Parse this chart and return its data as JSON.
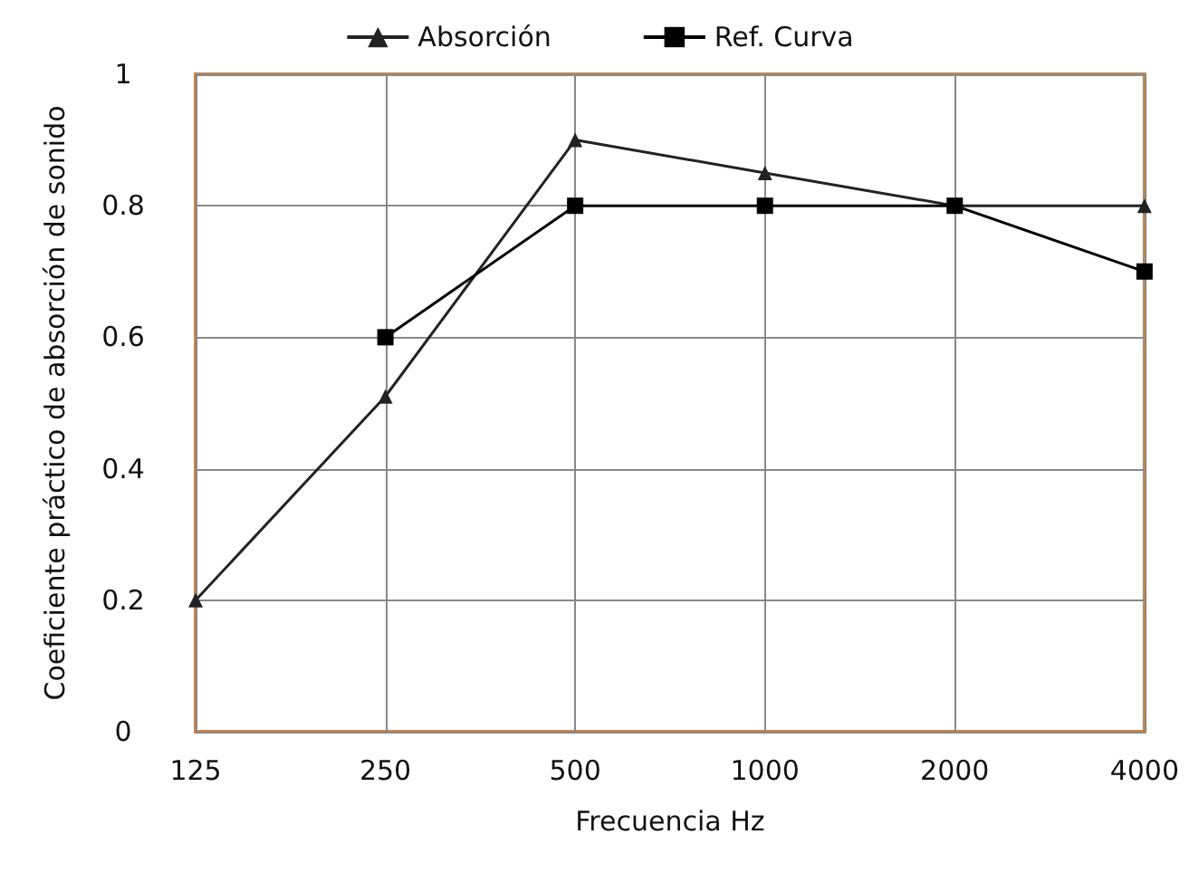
{
  "chart_data": {
    "type": "line",
    "xlabel": "Frecuencia Hz",
    "ylabel": "Coeficiente práctico de absorción de sonido",
    "categories": [
      "125",
      "250",
      "500",
      "1000",
      "2000",
      "4000"
    ],
    "series": [
      {
        "name": "Absorción",
        "color": "#222222",
        "marker": "triangle",
        "values": [
          0.2,
          0.51,
          0.9,
          0.85,
          0.8,
          0.8
        ]
      },
      {
        "name": "Ref. Curva",
        "color": "#000000",
        "marker": "square",
        "values": [
          null,
          0.6,
          0.8,
          0.8,
          0.8,
          0.7
        ]
      }
    ],
    "ylim": [
      0,
      1
    ],
    "yticks": [
      0,
      0.2,
      0.4,
      0.6,
      0.8,
      1
    ],
    "grid": true,
    "legend": "top",
    "line_style": "solid"
  }
}
